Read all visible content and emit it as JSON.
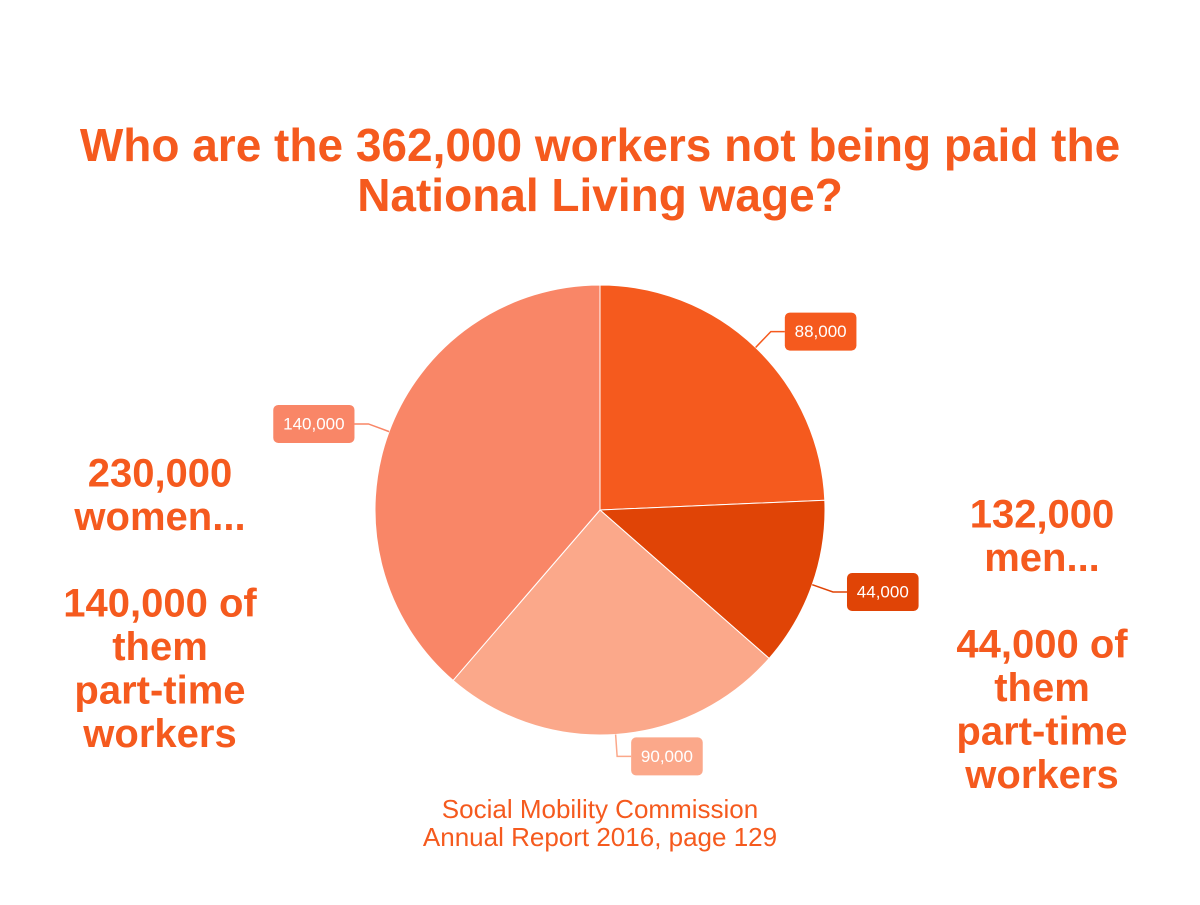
{
  "chart_data": {
    "type": "pie",
    "title": "Who are the 362,000 workers not being paid the National Living wage?",
    "values": [
      88000,
      44000,
      90000,
      140000
    ],
    "value_labels": [
      "88,000",
      "44,000",
      "90,000",
      "140,000"
    ],
    "colors": [
      "#f55a1e",
      "#e04406",
      "#fba88a",
      "#f98667"
    ],
    "annotations": [
      {
        "lines": [
          "230,000",
          "women..."
        ]
      },
      {
        "lines": [
          "140,000 of",
          "them",
          "part-time",
          "workers"
        ]
      },
      {
        "lines": [
          "132,000",
          "men..."
        ]
      },
      {
        "lines": [
          "44,000 of",
          "them",
          "part-time",
          "workers"
        ]
      }
    ],
    "source": [
      "Social Mobility Commission",
      "Annual Report 2016, page 129"
    ]
  }
}
